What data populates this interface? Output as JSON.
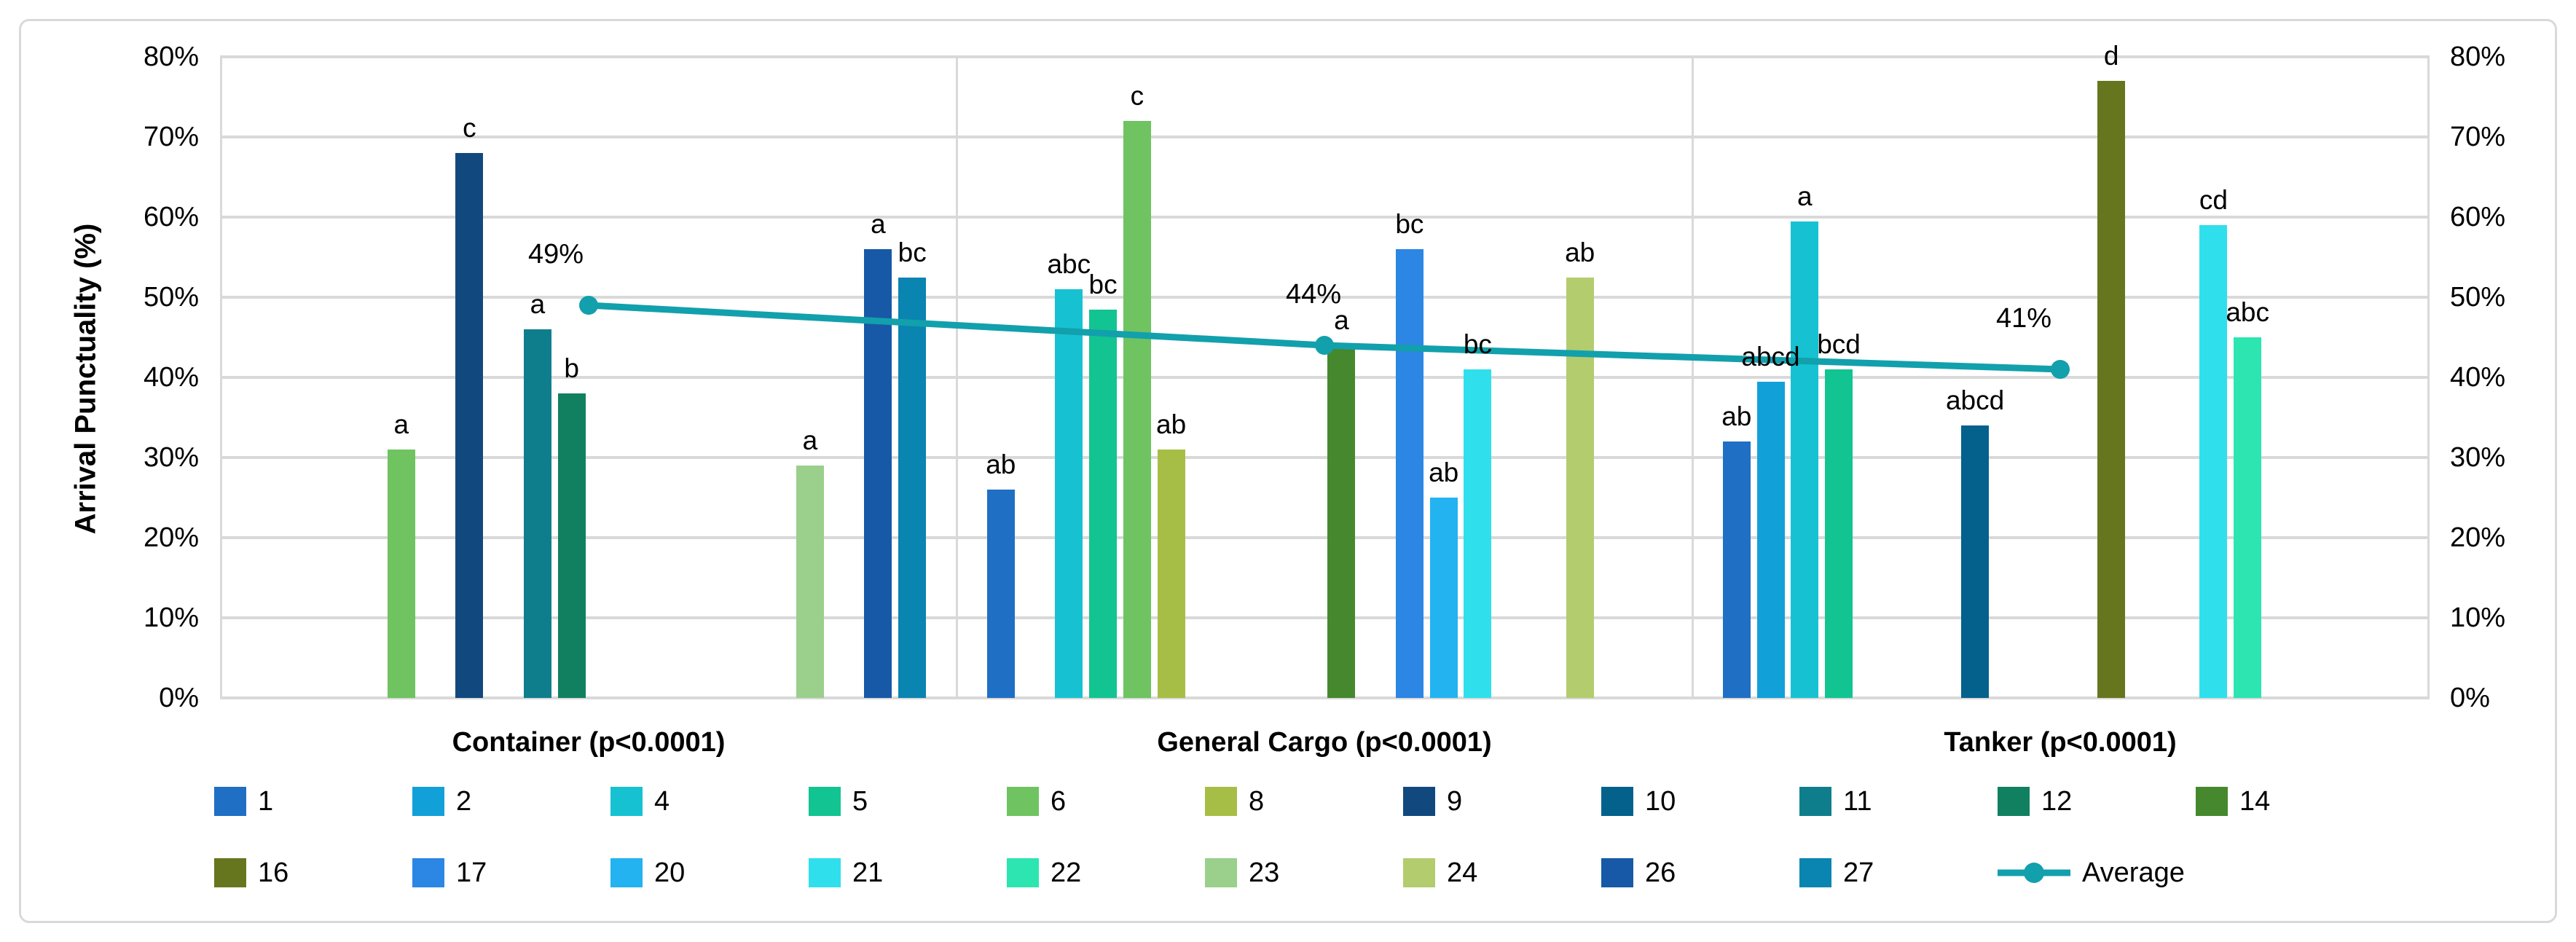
{
  "figure": {
    "background": "#FFFFFF",
    "border_color": "#D9D9D9",
    "grid_color": "#D9D9D9"
  },
  "axis": {
    "y_title": "Arrival Punctuality (%)",
    "y_ticks": [
      "0%",
      "10%",
      "20%",
      "30%",
      "40%",
      "50%",
      "60%",
      "70%",
      "80%"
    ],
    "y_min": 0,
    "y_max": 80,
    "y_step": 10,
    "ticks_shown_both_sides": true
  },
  "chart_data": {
    "type": "bar",
    "overlay": "line",
    "title": "",
    "xlabel": "",
    "ylabel": "Arrival Punctuality (%)",
    "ylim": [
      0,
      80
    ],
    "grid": true,
    "legend_position": "bottom",
    "series_order": [
      "1",
      "2",
      "4",
      "5",
      "6",
      "8",
      "9",
      "10",
      "11",
      "12",
      "14",
      "16",
      "17",
      "20",
      "21",
      "22",
      "23",
      "24",
      "26",
      "27"
    ],
    "series_colors": {
      "1": "#1F6FC4",
      "2": "#12A0D8",
      "4": "#16C2D2",
      "5": "#12C491",
      "6": "#6FC361",
      "8": "#A7BE46",
      "9": "#11497E",
      "10": "#03618C",
      "11": "#0F7E8C",
      "12": "#108060",
      "14": "#45882E",
      "16": "#66761F",
      "17": "#2B86E4",
      "20": "#23B3F0",
      "21": "#30DFEC",
      "22": "#2DE5B0",
      "23": "#9ACF8C",
      "24": "#B3CC6E",
      "26": "#1759A6",
      "27": "#0A84B0"
    },
    "categories": [
      {
        "label": "Container (p<0.0001)",
        "bars": [
          {
            "series": "6",
            "value": 31,
            "letter": "a"
          },
          {
            "series": "9",
            "value": 68,
            "letter": "c"
          },
          {
            "series": "11",
            "value": 46,
            "letter": "a"
          },
          {
            "series": "12",
            "value": 38,
            "letter": "b"
          },
          {
            "series": "23",
            "value": 29,
            "letter": "a"
          },
          {
            "series": "26",
            "value": 56,
            "letter": "a"
          },
          {
            "series": "27",
            "value": 52.5,
            "letter": "bc"
          }
        ]
      },
      {
        "label": "General Cargo (p<0.0001)",
        "bars": [
          {
            "series": "1",
            "value": 26,
            "letter": "ab"
          },
          {
            "series": "4",
            "value": 51,
            "letter": "abc"
          },
          {
            "series": "5",
            "value": 48.5,
            "letter": "bc"
          },
          {
            "series": "6",
            "value": 72,
            "letter": "c"
          },
          {
            "series": "8",
            "value": 31,
            "letter": "ab"
          },
          {
            "series": "14",
            "value": 44,
            "letter": "a"
          },
          {
            "series": "17",
            "value": 56,
            "letter": "bc"
          },
          {
            "series": "20",
            "value": 25,
            "letter": "ab"
          },
          {
            "series": "21",
            "value": 41,
            "letter": "bc"
          },
          {
            "series": "24",
            "value": 52.5,
            "letter": "ab"
          }
        ]
      },
      {
        "label": "Tanker (p<0.0001)",
        "bars": [
          {
            "series": "1",
            "value": 32,
            "letter": "ab"
          },
          {
            "series": "2",
            "value": 39.5,
            "letter": "abcd"
          },
          {
            "series": "4",
            "value": 59.5,
            "letter": "a"
          },
          {
            "series": "5",
            "value": 41,
            "letter": "bcd"
          },
          {
            "series": "10",
            "value": 34,
            "letter": "abcd"
          },
          {
            "series": "16",
            "value": 77,
            "letter": "d"
          },
          {
            "series": "21",
            "value": 59,
            "letter": "cd"
          },
          {
            "series": "22",
            "value": 45,
            "letter": "abc"
          }
        ]
      }
    ],
    "average_series": {
      "name": "Average",
      "color": "#12A0AC",
      "values": [
        49,
        44,
        41
      ],
      "labels": [
        "49%",
        "44%",
        "41%"
      ],
      "marker": "circle"
    }
  },
  "legend": {
    "rows": [
      [
        "1",
        "2",
        "4",
        "5",
        "6",
        "8",
        "9",
        "10",
        "11",
        "12",
        "14"
      ],
      [
        "16",
        "17",
        "20",
        "21",
        "22",
        "23",
        "24",
        "26",
        "27",
        "Average"
      ]
    ],
    "average_label": "Average"
  }
}
